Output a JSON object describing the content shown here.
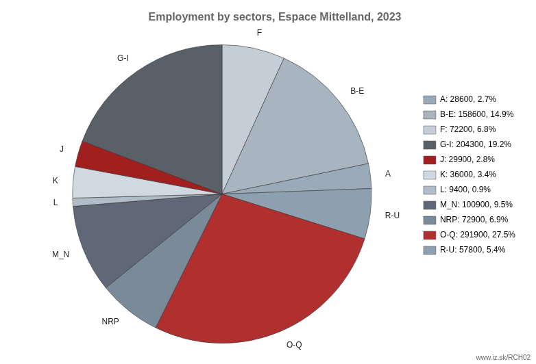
{
  "chart_data": {
    "type": "pie",
    "title": "Employment by sectors, Espace Mittelland, 2023",
    "categories": [
      "F",
      "B-E",
      "A",
      "R-U",
      "O-Q",
      "NRP",
      "M_N",
      "L",
      "K",
      "J",
      "G-I"
    ],
    "values": [
      72200,
      158600,
      28600,
      57800,
      291900,
      72900,
      100900,
      9400,
      36000,
      29900,
      204300
    ],
    "colors": [
      "#c5cdd6",
      "#a8b4c0",
      "#9aaab8",
      "#8ca0b0",
      "#b03030",
      "#7a8a98",
      "#606878",
      "#b0bcc8",
      "#d0d8e0",
      "#a02020",
      "#5a6068"
    ],
    "legend": "right",
    "legend_entries": [
      {
        "label": "A: 28600, 2.7%",
        "color": "#9aaab8"
      },
      {
        "label": "B-E: 158600, 14.9%",
        "color": "#a8b4c0"
      },
      {
        "label": "F: 72200, 6.8%",
        "color": "#c5cdd6"
      },
      {
        "label": "G-I: 204300, 19.2%",
        "color": "#5a6068"
      },
      {
        "label": "J: 29900, 2.8%",
        "color": "#a02020"
      },
      {
        "label": "K: 36000, 3.4%",
        "color": "#d0d8e0"
      },
      {
        "label": "L: 9400, 0.9%",
        "color": "#b0bcc8"
      },
      {
        "label": "M_N: 100900, 9.5%",
        "color": "#606878"
      },
      {
        "label": "NRP: 72900, 6.9%",
        "color": "#7a8a98"
      },
      {
        "label": "O-Q: 291900, 27.5%",
        "color": "#b03030"
      },
      {
        "label": "R-U: 57800, 5.4%",
        "color": "#8ca0b0"
      }
    ],
    "annotations": [
      "www.iz.sk/RCH02"
    ]
  }
}
